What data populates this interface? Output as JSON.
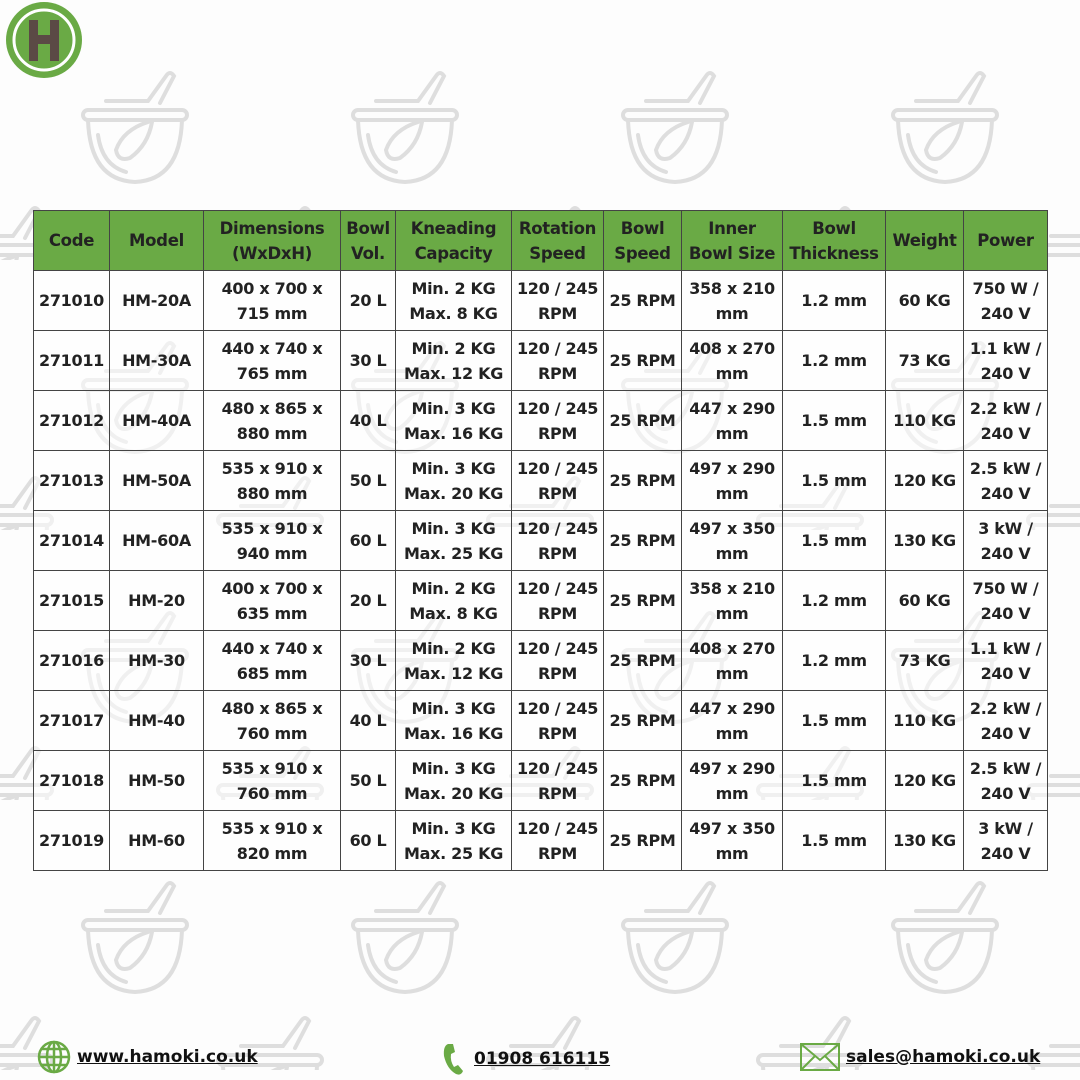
{
  "brand": {
    "logo_letter": "H",
    "logo_color": "#6aaa45",
    "logo_letter_color": "#5b4a45"
  },
  "colors": {
    "header_bg": "#6aaa45",
    "border": "#444444",
    "watermark": "#dddddd"
  },
  "table": {
    "headers": [
      [
        "Code",
        ""
      ],
      [
        "Model",
        ""
      ],
      [
        "Dimensions",
        "(WxDxH)"
      ],
      [
        "Bowl",
        "Vol."
      ],
      [
        "Kneading",
        "Capacity"
      ],
      [
        "Rotation",
        "Speed"
      ],
      [
        "Bowl",
        "Speed"
      ],
      [
        "Inner",
        "Bowl Size"
      ],
      [
        "Bowl",
        "Thickness"
      ],
      [
        "Weight",
        ""
      ],
      [
        "Power",
        ""
      ]
    ],
    "rows": [
      [
        [
          "271010"
        ],
        [
          "HM-20A"
        ],
        [
          "400 x 700 x",
          "715 mm"
        ],
        [
          "20 L"
        ],
        [
          "Min. 2 KG",
          "Max. 8 KG"
        ],
        [
          "120 / 245",
          "RPM"
        ],
        [
          "25 RPM"
        ],
        [
          "358 x 210",
          "mm"
        ],
        [
          "1.2 mm"
        ],
        [
          "60 KG"
        ],
        [
          "750 W /",
          "240 V"
        ]
      ],
      [
        [
          "271011"
        ],
        [
          "HM-30A"
        ],
        [
          "440 x 740 x",
          "765 mm"
        ],
        [
          "30 L"
        ],
        [
          "Min. 2 KG",
          "Max. 12 KG"
        ],
        [
          "120 / 245",
          "RPM"
        ],
        [
          "25 RPM"
        ],
        [
          "408 x 270",
          "mm"
        ],
        [
          "1.2 mm"
        ],
        [
          "73 KG"
        ],
        [
          "1.1 kW /",
          "240 V"
        ]
      ],
      [
        [
          "271012"
        ],
        [
          "HM-40A"
        ],
        [
          "480 x 865 x",
          "880 mm"
        ],
        [
          "40 L"
        ],
        [
          "Min. 3 KG",
          "Max. 16 KG"
        ],
        [
          "120 / 245",
          "RPM"
        ],
        [
          "25 RPM"
        ],
        [
          "447 x 290",
          "mm"
        ],
        [
          "1.5 mm"
        ],
        [
          "110 KG"
        ],
        [
          "2.2 kW /",
          "240 V"
        ]
      ],
      [
        [
          "271013"
        ],
        [
          "HM-50A"
        ],
        [
          "535 x 910 x",
          "880 mm"
        ],
        [
          "50 L"
        ],
        [
          "Min. 3 KG",
          "Max. 20 KG"
        ],
        [
          "120 / 245",
          "RPM"
        ],
        [
          "25 RPM"
        ],
        [
          "497 x 290",
          "mm"
        ],
        [
          "1.5 mm"
        ],
        [
          "120 KG"
        ],
        [
          "2.5 kW /",
          "240 V"
        ]
      ],
      [
        [
          "271014"
        ],
        [
          "HM-60A"
        ],
        [
          "535 x 910 x",
          "940 mm"
        ],
        [
          "60 L"
        ],
        [
          "Min. 3 KG",
          "Max. 25 KG"
        ],
        [
          "120 / 245",
          "RPM"
        ],
        [
          "25 RPM"
        ],
        [
          "497 x 350",
          "mm"
        ],
        [
          "1.5 mm"
        ],
        [
          "130 KG"
        ],
        [
          "3 kW /",
          "240 V"
        ]
      ],
      [
        [
          "271015"
        ],
        [
          "HM-20"
        ],
        [
          "400 x 700 x",
          "635 mm"
        ],
        [
          "20 L"
        ],
        [
          "Min. 2 KG",
          "Max. 8 KG"
        ],
        [
          "120 / 245",
          "RPM"
        ],
        [
          "25 RPM"
        ],
        [
          "358 x 210",
          "mm"
        ],
        [
          "1.2 mm"
        ],
        [
          "60 KG"
        ],
        [
          "750 W /",
          "240 V"
        ]
      ],
      [
        [
          "271016"
        ],
        [
          "HM-30"
        ],
        [
          "440 x 740 x",
          "685 mm"
        ],
        [
          "30 L"
        ],
        [
          "Min. 2 KG",
          "Max. 12 KG"
        ],
        [
          "120 / 245",
          "RPM"
        ],
        [
          "25 RPM"
        ],
        [
          "408 x 270",
          "mm"
        ],
        [
          "1.2 mm"
        ],
        [
          "73 KG"
        ],
        [
          "1.1 kW /",
          "240 V"
        ]
      ],
      [
        [
          "271017"
        ],
        [
          "HM-40"
        ],
        [
          "480 x 865 x",
          "760 mm"
        ],
        [
          "40 L"
        ],
        [
          "Min. 3 KG",
          "Max. 16 KG"
        ],
        [
          "120 / 245",
          "RPM"
        ],
        [
          "25 RPM"
        ],
        [
          "447 x 290",
          "mm"
        ],
        [
          "1.5 mm"
        ],
        [
          "110 KG"
        ],
        [
          "2.2 kW /",
          "240 V"
        ]
      ],
      [
        [
          "271018"
        ],
        [
          "HM-50"
        ],
        [
          "535 x 910 x",
          "760 mm"
        ],
        [
          "50 L"
        ],
        [
          "Min. 3 KG",
          "Max. 20 KG"
        ],
        [
          "120 / 245",
          "RPM"
        ],
        [
          "25 RPM"
        ],
        [
          "497 x 290",
          "mm"
        ],
        [
          "1.5 mm"
        ],
        [
          "120 KG"
        ],
        [
          "2.5 kW /",
          "240 V"
        ]
      ],
      [
        [
          "271019"
        ],
        [
          "HM-60"
        ],
        [
          "535 x 910 x",
          "820 mm"
        ],
        [
          "60 L"
        ],
        [
          "Min. 3 KG",
          "Max. 25 KG"
        ],
        [
          "120 / 245",
          "RPM"
        ],
        [
          "25 RPM"
        ],
        [
          "497 x 350",
          "mm"
        ],
        [
          "1.5 mm"
        ],
        [
          "130 KG"
        ],
        [
          "3 kW /",
          "240 V"
        ]
      ]
    ]
  },
  "footer": {
    "website": {
      "icon": "globe-icon",
      "label": "www.hamoki.co.uk"
    },
    "phone": {
      "icon": "phone-icon",
      "label": "01908 616115"
    },
    "email": {
      "icon": "envelope-icon",
      "label": "sales@hamoki.co.uk"
    }
  }
}
